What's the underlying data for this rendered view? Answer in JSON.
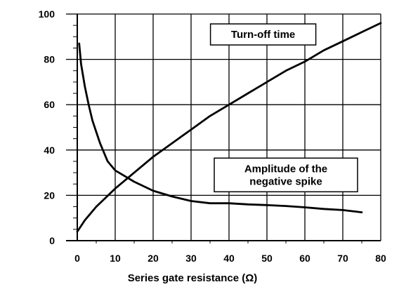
{
  "chart_data": {
    "type": "line",
    "title": "",
    "xlabel": "Series gate resistance (Ω)",
    "ylabel": "",
    "xlim": [
      0,
      80
    ],
    "ylim": [
      0,
      100
    ],
    "x_ticks": [
      0,
      10,
      20,
      30,
      40,
      50,
      60,
      70,
      80
    ],
    "y_ticks": [
      0,
      20,
      40,
      60,
      80,
      100
    ],
    "grid": true,
    "series": [
      {
        "name": "Turn-off time",
        "color": "#000000",
        "x": [
          0,
          2,
          5,
          10,
          15,
          20,
          25,
          30,
          35,
          40,
          45,
          50,
          55,
          60,
          65,
          70,
          75,
          80
        ],
        "y": [
          4,
          9,
          15,
          23,
          30,
          37,
          43,
          49,
          55,
          60,
          65,
          70,
          75,
          79,
          84,
          88,
          92,
          96
        ]
      },
      {
        "name": "Amplitude of the negative spike",
        "color": "#000000",
        "x": [
          0.5,
          1,
          2,
          3,
          4,
          5,
          6,
          7,
          8,
          10,
          12,
          15,
          20,
          25,
          30,
          35,
          40,
          45,
          50,
          55,
          60,
          65,
          70,
          75
        ],
        "y": [
          87,
          78,
          68,
          60,
          53,
          48,
          43,
          39,
          35,
          31,
          29,
          26,
          22,
          19.5,
          17.5,
          16.5,
          16.5,
          16,
          15.7,
          15.3,
          14.7,
          14,
          13.5,
          12.5
        ]
      }
    ],
    "annotations": [
      {
        "id": "turnoff",
        "lines": [
          "Turn-off time"
        ],
        "x": 49,
        "y": 91
      },
      {
        "id": "spike",
        "lines": [
          "Amplitude of the",
          "negative spike"
        ],
        "x": 55,
        "y": 29
      }
    ]
  }
}
